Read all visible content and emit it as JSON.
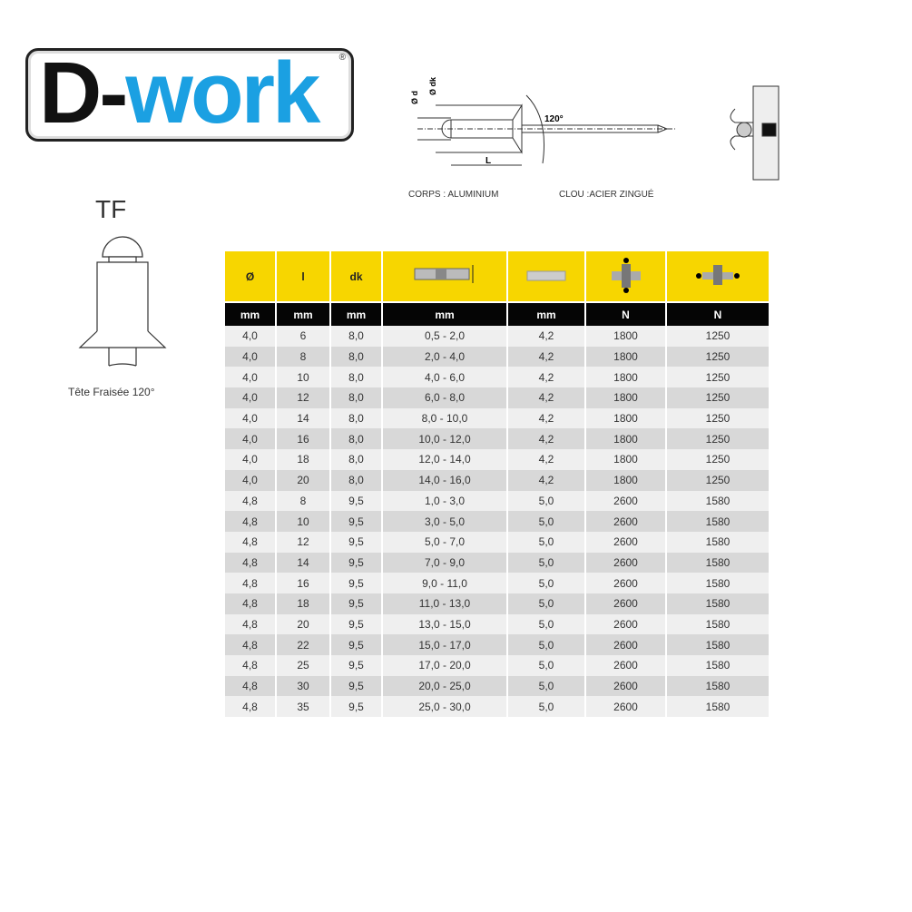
{
  "logo": {
    "part1": "D-",
    "part2": "work",
    "reg": "®"
  },
  "diagram": {
    "label_d": "Ø d",
    "label_dk": "Ø dk",
    "label_angle": "120°",
    "label_L": "L",
    "body_material": "CORPS : ALUMINIUM",
    "mandrel_material": "CLOU :ACIER ZINGUÉ"
  },
  "rivet_type": {
    "code": "TF",
    "caption": "Tête Fraisée 120°"
  },
  "colors": {
    "header": "#f7d600",
    "units": "#050505",
    "logo_blue": "#1ba0e2"
  },
  "table": {
    "headers": [
      "Ø",
      "l",
      "dk",
      "grip-range-icon",
      "drill-hole-icon",
      "shear-strength-icon",
      "tensile-strength-icon"
    ],
    "units": [
      "mm",
      "mm",
      "mm",
      "mm",
      "mm",
      "N",
      "N"
    ],
    "rows": [
      [
        "4,0",
        "6",
        "8,0",
        "0,5 - 2,0",
        "4,2",
        "1800",
        "1250"
      ],
      [
        "4,0",
        "8",
        "8,0",
        "2,0 - 4,0",
        "4,2",
        "1800",
        "1250"
      ],
      [
        "4,0",
        "10",
        "8,0",
        "4,0 - 6,0",
        "4,2",
        "1800",
        "1250"
      ],
      [
        "4,0",
        "12",
        "8,0",
        "6,0 - 8,0",
        "4,2",
        "1800",
        "1250"
      ],
      [
        "4,0",
        "14",
        "8,0",
        "8,0 - 10,0",
        "4,2",
        "1800",
        "1250"
      ],
      [
        "4,0",
        "16",
        "8,0",
        "10,0 - 12,0",
        "4,2",
        "1800",
        "1250"
      ],
      [
        "4,0",
        "18",
        "8,0",
        "12,0 - 14,0",
        "4,2",
        "1800",
        "1250"
      ],
      [
        "4,0",
        "20",
        "8,0",
        "14,0 - 16,0",
        "4,2",
        "1800",
        "1250"
      ],
      [
        "4,8",
        "8",
        "9,5",
        "1,0 - 3,0",
        "5,0",
        "2600",
        "1580"
      ],
      [
        "4,8",
        "10",
        "9,5",
        "3,0 - 5,0",
        "5,0",
        "2600",
        "1580"
      ],
      [
        "4,8",
        "12",
        "9,5",
        "5,0 - 7,0",
        "5,0",
        "2600",
        "1580"
      ],
      [
        "4,8",
        "14",
        "9,5",
        "7,0 - 9,0",
        "5,0",
        "2600",
        "1580"
      ],
      [
        "4,8",
        "16",
        "9,5",
        "9,0 - 11,0",
        "5,0",
        "2600",
        "1580"
      ],
      [
        "4,8",
        "18",
        "9,5",
        "11,0 - 13,0",
        "5,0",
        "2600",
        "1580"
      ],
      [
        "4,8",
        "20",
        "9,5",
        "13,0 - 15,0",
        "5,0",
        "2600",
        "1580"
      ],
      [
        "4,8",
        "22",
        "9,5",
        "15,0 - 17,0",
        "5,0",
        "2600",
        "1580"
      ],
      [
        "4,8",
        "25",
        "9,5",
        "17,0 - 20,0",
        "5,0",
        "2600",
        "1580"
      ],
      [
        "4,8",
        "30",
        "9,5",
        "20,0 - 25,0",
        "5,0",
        "2600",
        "1580"
      ],
      [
        "4,8",
        "35",
        "9,5",
        "25,0 - 30,0",
        "5,0",
        "2600",
        "1580"
      ]
    ]
  }
}
